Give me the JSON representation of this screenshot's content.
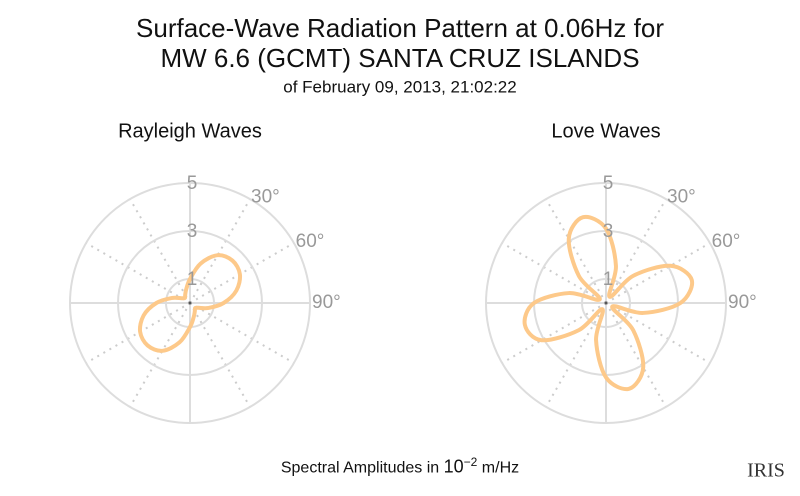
{
  "title": [
    "Surface-Wave Radiation Pattern at 0.06Hz for",
    "MW 6.6 (GCMT) SANTA CRUZ ISLANDS"
  ],
  "subtitle": "of February 09, 2013, 21:02:22",
  "caption": {
    "text": "Spectral Amplitudes in",
    "base": "10",
    "exponent": "−2",
    "unit": "m/Hz"
  },
  "logo": "IRIS",
  "chart_data": [
    {
      "type": "polar",
      "title": "Rayleigh Waves",
      "rlim": [
        0,
        5
      ],
      "rticks": [
        1,
        3,
        5
      ],
      "thetaticks": [
        {
          "value": 30,
          "label": "30°"
        },
        {
          "value": 60,
          "label": "60°"
        },
        {
          "value": 90,
          "label": "90°"
        }
      ],
      "series": [
        {
          "color": "#fdc98a",
          "theta": [
            0,
            15,
            30,
            45,
            60,
            75,
            90,
            105,
            120,
            135,
            150,
            165,
            180,
            195,
            210,
            225,
            240,
            255,
            270,
            285,
            300,
            315,
            330,
            345
          ],
          "values": [
            1.0,
            1.7,
            2.3,
            2.5,
            2.4,
            2.0,
            1.4,
            0.8,
            0.4,
            0.3,
            0.4,
            0.6,
            1.0,
            1.7,
            2.3,
            2.5,
            2.4,
            2.0,
            1.4,
            0.8,
            0.4,
            0.3,
            0.4,
            0.6
          ]
        }
      ]
    },
    {
      "type": "polar",
      "title": "Love Waves",
      "rlim": [
        0,
        5
      ],
      "rticks": [
        1,
        3,
        5
      ],
      "thetaticks": [
        {
          "value": 30,
          "label": "30°"
        },
        {
          "value": 60,
          "label": "60°"
        },
        {
          "value": 90,
          "label": "90°"
        }
      ],
      "series": [
        {
          "color": "#fdc98a",
          "theta": [
            0,
            15,
            30,
            45,
            60,
            75,
            90,
            105,
            120,
            135,
            150,
            165,
            180,
            195,
            210,
            225,
            240,
            255,
            270,
            285,
            300,
            315,
            330,
            345
          ],
          "values": [
            3.1,
            1.6,
            0.3,
            1.6,
            3.1,
            3.7,
            3.1,
            1.6,
            0.3,
            1.6,
            3.1,
            3.7,
            3.1,
            1.6,
            0.3,
            1.6,
            3.1,
            3.5,
            3.0,
            1.6,
            0.3,
            1.6,
            3.1,
            3.7
          ]
        }
      ]
    }
  ]
}
